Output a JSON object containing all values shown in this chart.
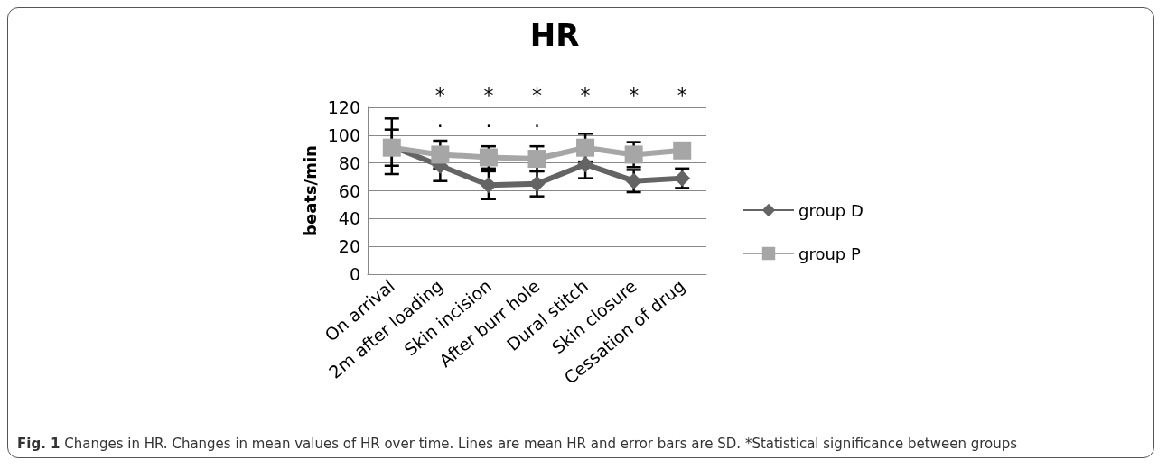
{
  "chart_data": {
    "type": "line",
    "title": "HR",
    "ylabel": "beats/min",
    "categories": [
      "On arrival",
      "2m after loading",
      "Skin incision",
      "After burr hole",
      "Dural stitch",
      "Skin closure",
      "Cessation of drug"
    ],
    "series": [
      {
        "name": "group D",
        "color": "#646464",
        "marker": "diamond",
        "values": [
          92,
          78,
          64,
          65,
          79,
          67,
          69
        ],
        "errors": [
          20,
          11,
          10,
          9,
          10,
          8,
          7
        ]
      },
      {
        "name": "group P",
        "color": "#a6a6a6",
        "marker": "square",
        "values": [
          91,
          86,
          84,
          83,
          91,
          86,
          89
        ],
        "errors": [
          13,
          10,
          8,
          9,
          10,
          9,
          null
        ]
      }
    ],
    "ylim": [
      0,
      120
    ],
    "yticks": [
      0,
      20,
      40,
      60,
      80,
      100,
      120
    ],
    "grid": "y",
    "legend": "right",
    "annotations": [
      "*",
      "*",
      "*",
      "*",
      "*",
      "*",
      ".",
      ".",
      ".",
      "Fig. 1 Changes in HR. Changes in mean values of HR over time. Lines are mean HR and error bars are SD. *Statistical significance between groups"
    ]
  }
}
